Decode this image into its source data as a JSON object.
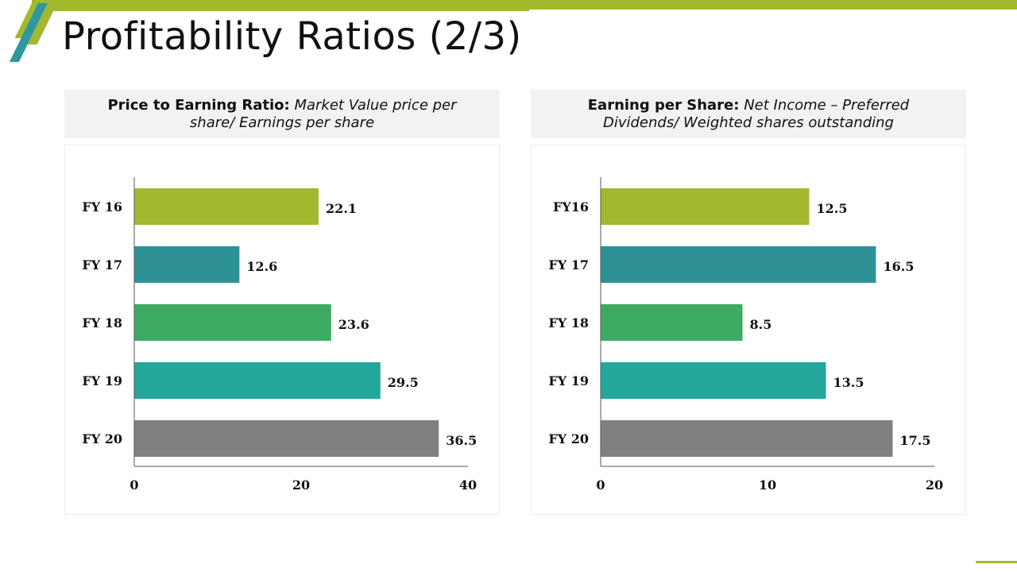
{
  "title": "Profitability Ratios (2/3)",
  "panels": [
    {
      "header_bold": "Price to Earning Ratio:",
      "header_italic": " Market Value price per share/ Earnings per share"
    },
    {
      "header_bold": "Earning per Share:",
      "header_italic": " Net Income – Preferred Dividends/ Weighted shares outstanding"
    }
  ],
  "colors": {
    "accent_green": "#a3b82c",
    "accent_teal": "#2e97a0",
    "bar_colors": [
      "#a3b82c",
      "#2e9196",
      "#3dab63",
      "#22a79a",
      "#808080"
    ]
  },
  "chart_data": [
    {
      "type": "bar",
      "orientation": "horizontal",
      "title": "Price to Earning Ratio",
      "categories": [
        "FY 16",
        "FY 17",
        "FY 18",
        "FY 19",
        "FY 20"
      ],
      "values": [
        22.1,
        12.6,
        23.6,
        29.5,
        36.5
      ],
      "value_labels": [
        "22.1",
        "12.6",
        "23.6",
        "29.5",
        "36.5"
      ],
      "xlim": [
        0,
        40
      ],
      "xticks": [
        "0",
        "20",
        "40"
      ],
      "grid": false
    },
    {
      "type": "bar",
      "orientation": "horizontal",
      "title": "Earning per Share",
      "categories": [
        "FY16",
        "FY 17",
        "FY 18",
        "FY 19",
        "FY 20"
      ],
      "values": [
        12.5,
        16.5,
        8.5,
        13.5,
        17.5
      ],
      "value_labels": [
        "12.5",
        "16.5",
        "8.5",
        "13.5",
        "17.5"
      ],
      "xlim": [
        0,
        20
      ],
      "xticks": [
        "0",
        "10",
        "20"
      ],
      "grid": false
    }
  ]
}
